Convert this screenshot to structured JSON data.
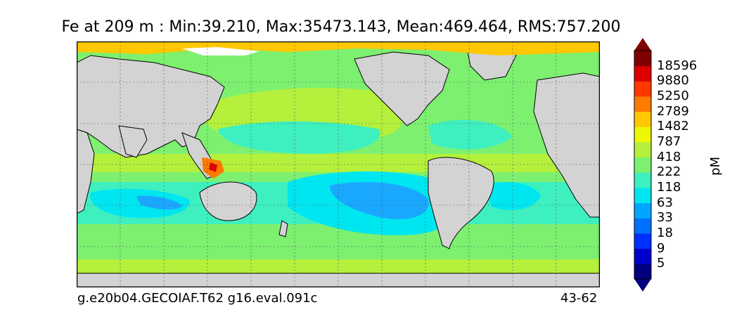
{
  "title": "Fe at 209 m : Min:39.210, Max:35473.143, Mean:469.464, RMS:757.200",
  "footer_left": "g.e20b04.GECOIAF.T62 g16.eval.091c",
  "footer_right": "43-62",
  "colorbar": {
    "label": "pM",
    "ticks": [
      "18596",
      "9880",
      "5250",
      "2789",
      "1482",
      "787",
      "418",
      "222",
      "118",
      "63",
      "33",
      "18",
      "9",
      "5"
    ],
    "colors": [
      "#000080",
      "#0000cd",
      "#0030ff",
      "#0070ff",
      "#00a6ff",
      "#00e6f0",
      "#3ef0c0",
      "#7df070",
      "#b4f03c",
      "#ecf800",
      "#ffc800",
      "#ff7a00",
      "#ff3800",
      "#dd0000",
      "#800000"
    ]
  },
  "map_colors": {
    "land": "#d3d3d3",
    "ice": "#ffffff",
    "gyre_inner": "#1aa8ff",
    "gyre_mid": "#00e6f0",
    "open_ocean": "#3ef0c0",
    "coastal": "#7df070",
    "shelf": "#b4f03c",
    "high": "#ecf800",
    "very_high": "#ffc800"
  }
}
